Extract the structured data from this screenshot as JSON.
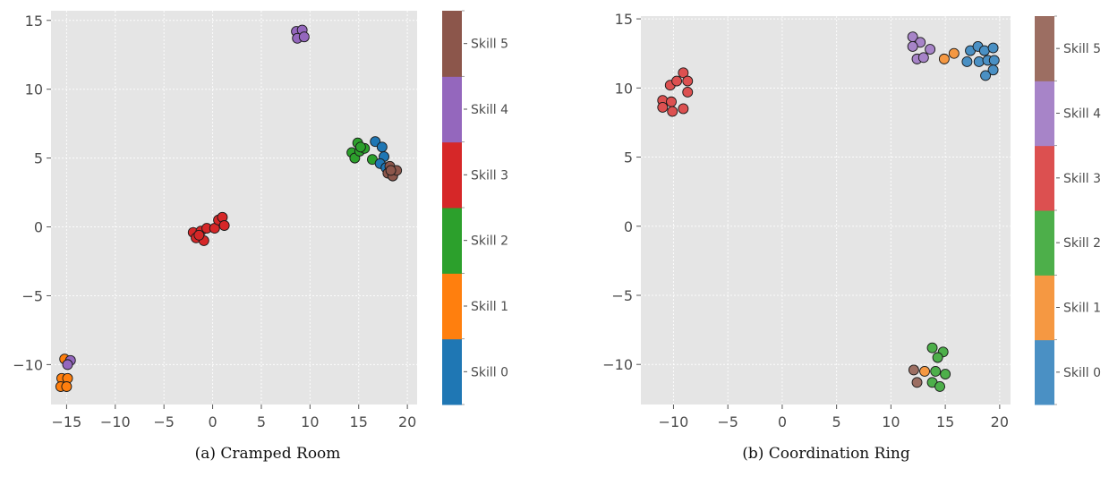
{
  "chart_data": [
    {
      "type": "scatter",
      "caption": "(a) Cramped Room",
      "xlim": [
        -16.6,
        21
      ],
      "ylim": [
        -12.9,
        15.7
      ],
      "xticks": [
        -15,
        -10,
        -5,
        0,
        5,
        10,
        15,
        20
      ],
      "yticks": [
        -10,
        -5,
        0,
        5,
        10,
        15
      ],
      "grid": true,
      "colorbar": {
        "placement": "right",
        "labels": [
          "Skill 0",
          "Skill 1",
          "Skill 2",
          "Skill 3",
          "Skill 4",
          "Skill 5"
        ],
        "colors": [
          "#1f77b4",
          "#ff7f0e",
          "#2ca02c",
          "#d62728",
          "#9467bd",
          "#8c564b"
        ]
      },
      "points": [
        {
          "x": 8.6,
          "y": 14.2,
          "skill": 4
        },
        {
          "x": 9.2,
          "y": 14.3,
          "skill": 4
        },
        {
          "x": 8.7,
          "y": 13.7,
          "skill": 4
        },
        {
          "x": 9.4,
          "y": 13.8,
          "skill": 4
        },
        {
          "x": -2.0,
          "y": -0.4,
          "skill": 3
        },
        {
          "x": -1.7,
          "y": -0.8,
          "skill": 3
        },
        {
          "x": -1.2,
          "y": -0.3,
          "skill": 3
        },
        {
          "x": -0.9,
          "y": -1.0,
          "skill": 3
        },
        {
          "x": -0.6,
          "y": -0.1,
          "skill": 3
        },
        {
          "x": 0.2,
          "y": -0.1,
          "skill": 3
        },
        {
          "x": 0.6,
          "y": 0.5,
          "skill": 3
        },
        {
          "x": 1.0,
          "y": 0.7,
          "skill": 3
        },
        {
          "x": 1.2,
          "y": 0.1,
          "skill": 3
        },
        {
          "x": -1.4,
          "y": -0.6,
          "skill": 3
        },
        {
          "x": 14.3,
          "y": 5.4,
          "skill": 2
        },
        {
          "x": 14.6,
          "y": 5.0,
          "skill": 2
        },
        {
          "x": 14.9,
          "y": 6.1,
          "skill": 2
        },
        {
          "x": 15.1,
          "y": 5.5,
          "skill": 2
        },
        {
          "x": 15.6,
          "y": 5.7,
          "skill": 2
        },
        {
          "x": 16.4,
          "y": 4.9,
          "skill": 2
        },
        {
          "x": 15.2,
          "y": 5.8,
          "skill": 2
        },
        {
          "x": 16.7,
          "y": 6.2,
          "skill": 0
        },
        {
          "x": 17.4,
          "y": 5.8,
          "skill": 0
        },
        {
          "x": 17.6,
          "y": 5.1,
          "skill": 0
        },
        {
          "x": 17.2,
          "y": 4.6,
          "skill": 0
        },
        {
          "x": 17.8,
          "y": 4.3,
          "skill": 0
        },
        {
          "x": 18.2,
          "y": 4.4,
          "skill": 5
        },
        {
          "x": 18.0,
          "y": 3.9,
          "skill": 5
        },
        {
          "x": 18.5,
          "y": 3.7,
          "skill": 5
        },
        {
          "x": 18.9,
          "y": 4.1,
          "skill": 5
        },
        {
          "x": 18.3,
          "y": 4.1,
          "skill": 5
        },
        {
          "x": -15.2,
          "y": -9.6,
          "skill": 1
        },
        {
          "x": -15.5,
          "y": -11.0,
          "skill": 1
        },
        {
          "x": -14.9,
          "y": -11.0,
          "skill": 1
        },
        {
          "x": -15.6,
          "y": -11.6,
          "skill": 1
        },
        {
          "x": -15.0,
          "y": -11.6,
          "skill": 1
        },
        {
          "x": -14.6,
          "y": -9.7,
          "skill": 4
        },
        {
          "x": -14.9,
          "y": -10.0,
          "skill": 4
        }
      ]
    },
    {
      "type": "scatter",
      "caption": "(b) Coordination Ring",
      "xlim": [
        -13,
        21
      ],
      "ylim": [
        -12.9,
        15.2
      ],
      "xticks": [
        -10,
        -5,
        0,
        5,
        10,
        15,
        20
      ],
      "yticks": [
        -10,
        -5,
        0,
        5,
        10,
        15
      ],
      "grid": true,
      "colorbar": {
        "placement": "right",
        "labels": [
          "Skill 0",
          "Skill 1",
          "Skill 2",
          "Skill 3",
          "Skill 4",
          "Skill 5"
        ],
        "colors": [
          "#4a90c4",
          "#f59842",
          "#4daf4a",
          "#dc5050",
          "#a784c8",
          "#9c6e62"
        ]
      },
      "points": [
        {
          "x": -10.3,
          "y": 10.2,
          "skill": 3
        },
        {
          "x": -9.7,
          "y": 10.5,
          "skill": 3
        },
        {
          "x": -9.1,
          "y": 11.1,
          "skill": 3
        },
        {
          "x": -8.7,
          "y": 10.5,
          "skill": 3
        },
        {
          "x": -8.7,
          "y": 9.7,
          "skill": 3
        },
        {
          "x": -11.0,
          "y": 9.1,
          "skill": 3
        },
        {
          "x": -10.2,
          "y": 9.0,
          "skill": 3
        },
        {
          "x": -11.0,
          "y": 8.6,
          "skill": 3
        },
        {
          "x": -10.1,
          "y": 8.3,
          "skill": 3
        },
        {
          "x": -9.1,
          "y": 8.5,
          "skill": 3
        },
        {
          "x": 12.0,
          "y": 13.7,
          "skill": 4
        },
        {
          "x": 12.7,
          "y": 13.3,
          "skill": 4
        },
        {
          "x": 12.0,
          "y": 13.0,
          "skill": 4
        },
        {
          "x": 13.6,
          "y": 12.8,
          "skill": 4
        },
        {
          "x": 12.4,
          "y": 12.1,
          "skill": 4
        },
        {
          "x": 13.0,
          "y": 12.2,
          "skill": 4
        },
        {
          "x": 14.9,
          "y": 12.1,
          "skill": 1
        },
        {
          "x": 15.8,
          "y": 12.5,
          "skill": 1
        },
        {
          "x": 17.0,
          "y": 11.9,
          "skill": 0
        },
        {
          "x": 17.3,
          "y": 12.7,
          "skill": 0
        },
        {
          "x": 18.1,
          "y": 11.9,
          "skill": 0
        },
        {
          "x": 18.0,
          "y": 13.0,
          "skill": 0
        },
        {
          "x": 18.6,
          "y": 12.7,
          "skill": 0
        },
        {
          "x": 19.4,
          "y": 12.9,
          "skill": 0
        },
        {
          "x": 18.9,
          "y": 12.0,
          "skill": 0
        },
        {
          "x": 19.5,
          "y": 12.0,
          "skill": 0
        },
        {
          "x": 19.4,
          "y": 11.3,
          "skill": 0
        },
        {
          "x": 18.7,
          "y": 10.9,
          "skill": 0
        },
        {
          "x": 13.8,
          "y": -8.8,
          "skill": 2
        },
        {
          "x": 14.8,
          "y": -9.1,
          "skill": 2
        },
        {
          "x": 14.3,
          "y": -9.5,
          "skill": 2
        },
        {
          "x": 14.1,
          "y": -10.5,
          "skill": 2
        },
        {
          "x": 15.0,
          "y": -10.7,
          "skill": 2
        },
        {
          "x": 13.8,
          "y": -11.3,
          "skill": 2
        },
        {
          "x": 14.5,
          "y": -11.6,
          "skill": 2
        },
        {
          "x": 13.1,
          "y": -10.5,
          "skill": 1
        },
        {
          "x": 12.1,
          "y": -10.4,
          "skill": 5
        },
        {
          "x": 12.4,
          "y": -11.3,
          "skill": 5
        }
      ]
    }
  ]
}
